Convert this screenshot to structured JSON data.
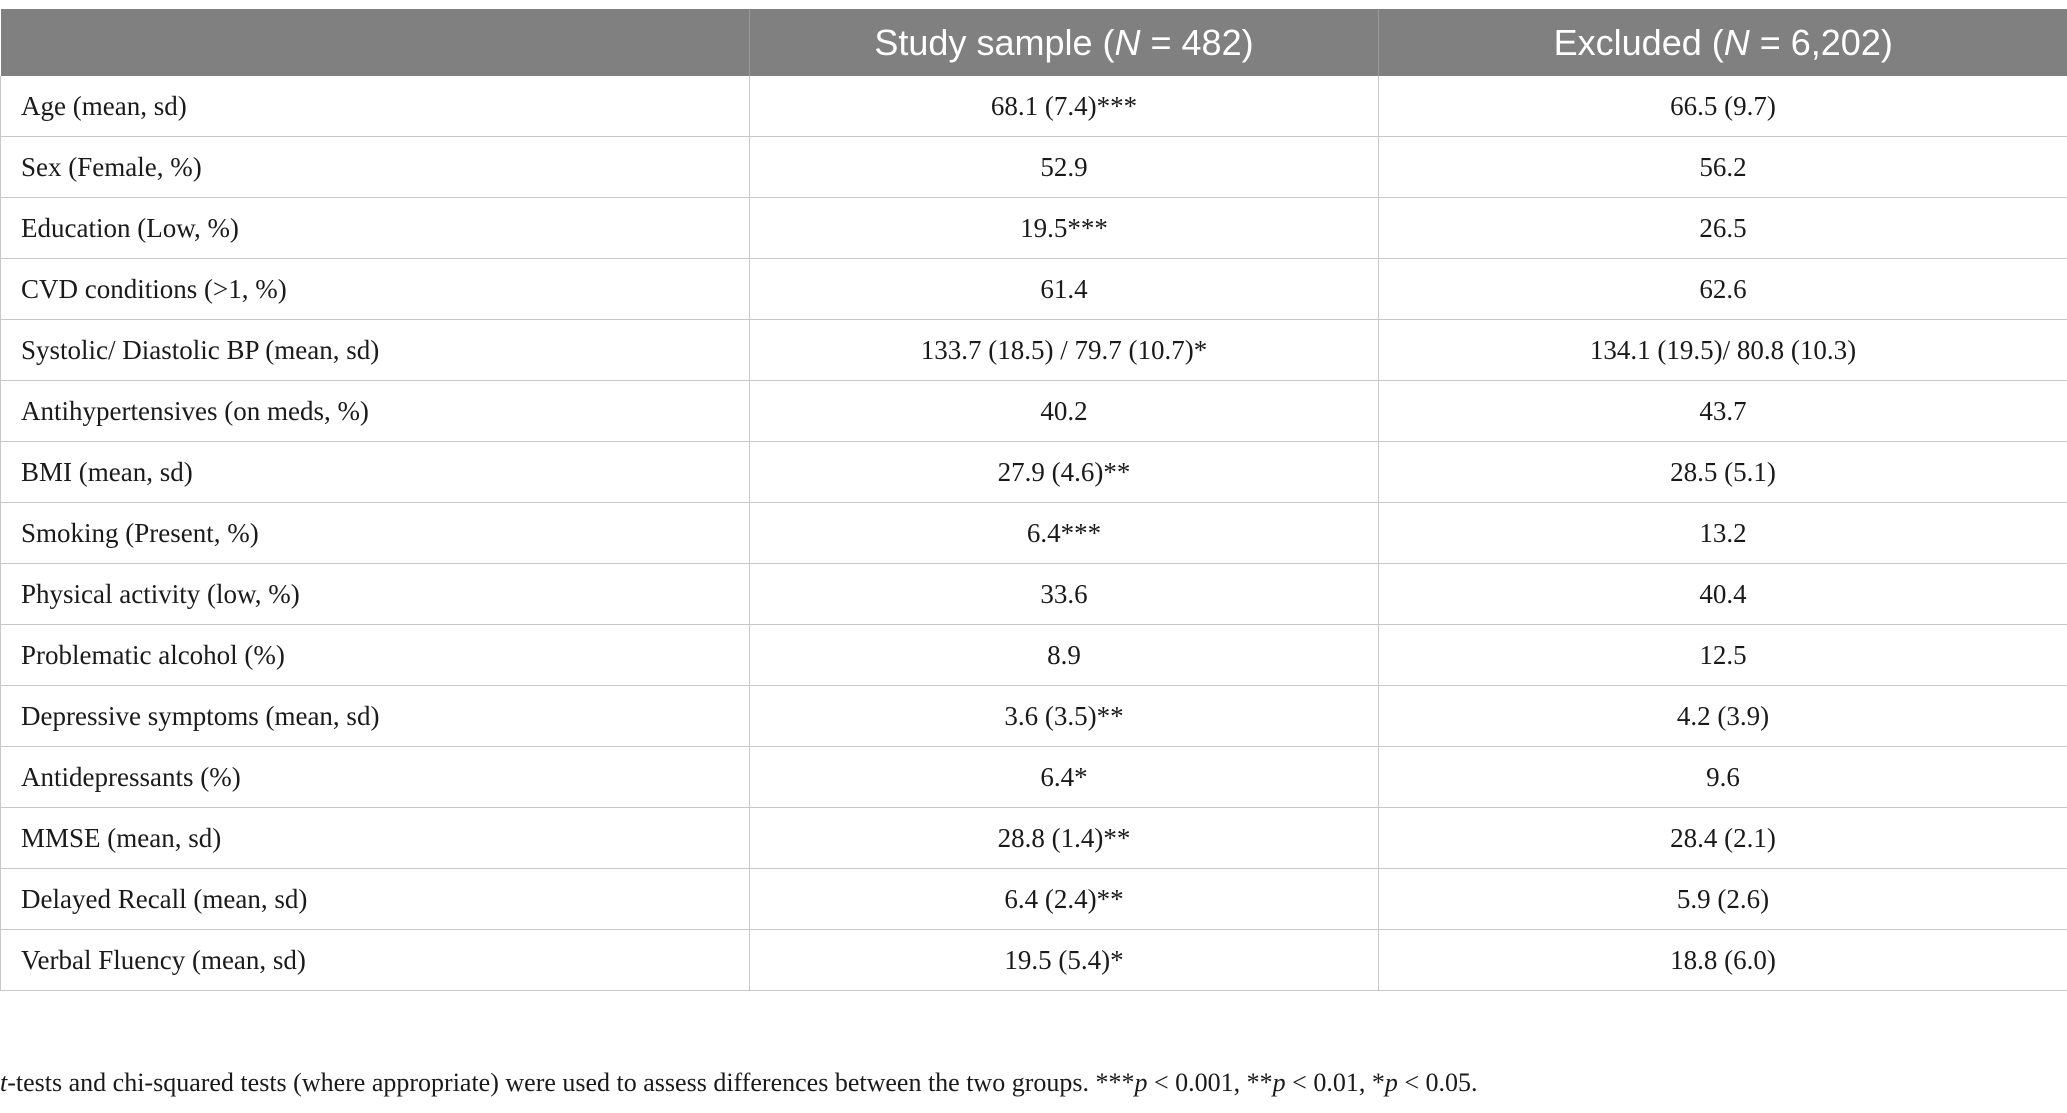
{
  "table": {
    "headers": [
      {
        "label": "",
        "n": ""
      },
      {
        "label": "Study sample (",
        "n_symbol": "N",
        "n_value": " = 482)"
      },
      {
        "label": "Excluded (",
        "n_symbol": "N",
        "n_value": " = 6,202)"
      }
    ],
    "rows": [
      {
        "variable": "Age (mean, sd)",
        "study": "68.1 (7.4)***",
        "excluded": "66.5 (9.7)"
      },
      {
        "variable": "Sex (Female, %)",
        "study": "52.9",
        "excluded": "56.2"
      },
      {
        "variable": "Education (Low, %)",
        "study": "19.5***",
        "excluded": "26.5"
      },
      {
        "variable": "CVD conditions (>1, %)",
        "study": "61.4",
        "excluded": "62.6"
      },
      {
        "variable": "Systolic/ Diastolic BP (mean, sd)",
        "study": "133.7 (18.5) / 79.7 (10.7)*",
        "excluded": "134.1 (19.5)/ 80.8 (10.3)"
      },
      {
        "variable": "Antihypertensives (on meds, %)",
        "study": "40.2",
        "excluded": "43.7"
      },
      {
        "variable": "BMI (mean, sd)",
        "study": "27.9 (4.6)**",
        "excluded": "28.5 (5.1)"
      },
      {
        "variable": "Smoking (Present, %)",
        "study": "6.4***",
        "excluded": "13.2"
      },
      {
        "variable": "Physical activity (low, %)",
        "study": "33.6",
        "excluded": "40.4"
      },
      {
        "variable": "Problematic alcohol (%)",
        "study": "8.9",
        "excluded": "12.5"
      },
      {
        "variable": "Depressive symptoms (mean, sd)",
        "study": "3.6 (3.5)**",
        "excluded": "4.2 (3.9)"
      },
      {
        "variable": "Antidepressants (%)",
        "study": "6.4*",
        "excluded": "9.6"
      },
      {
        "variable": "MMSE (mean, sd)",
        "study": "28.8 (1.4)**",
        "excluded": "28.4 (2.1)"
      },
      {
        "variable": "Delayed Recall (mean, sd)",
        "study": "6.4 (2.4)**",
        "excluded": "5.9 (2.6)"
      },
      {
        "variable": "Verbal Fluency (mean, sd)",
        "study": "19.5 (5.4)*",
        "excluded": "18.8 (6.0)"
      }
    ]
  },
  "footnote": {
    "t_letter": "t",
    "text": "-tests and chi-squared tests (where appropriate) were used to assess differences between the two groups. ",
    "p1_stars": "***",
    "p1_rest": " < 0.001, ",
    "p2_stars": "**",
    "p2_rest": " < 0.01, ",
    "p3_stars": "*",
    "p3_rest": " < 0.05.",
    "p_letter": "p"
  }
}
